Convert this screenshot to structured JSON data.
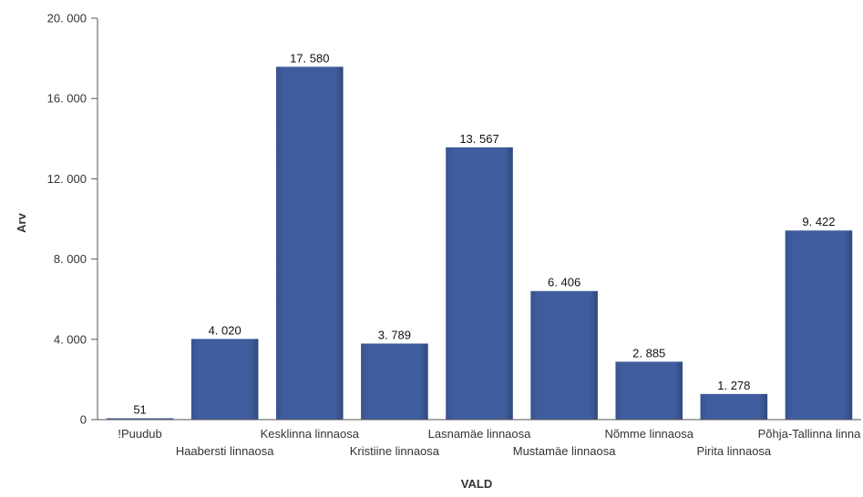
{
  "chart_data": {
    "type": "bar",
    "title": "",
    "xlabel": "VALD",
    "ylabel": "Arv",
    "ylim": [
      0,
      20000
    ],
    "yticks": [
      0,
      4000,
      8000,
      12000,
      16000,
      20000
    ],
    "ytick_labels": [
      "0",
      "4. 000",
      "8. 000",
      "12. 000",
      "16. 000",
      "20. 000"
    ],
    "grid": false,
    "legend": "none",
    "bar_color": "#3f5d9e",
    "categories": [
      "!Puudub",
      "Haabersti linnaosa",
      "Kesklinna linnaosa",
      "Kristiine linnaosa",
      "Lasnamäe linnaosa",
      "Mustamäe linnaosa",
      "Nõmme linnaosa",
      "Pirita linnaosa",
      "Põhja-Tallinna linnaosa"
    ],
    "values": [
      51,
      4020,
      17580,
      3789,
      13567,
      6406,
      2885,
      1278,
      9422
    ],
    "data_labels": [
      "51",
      "4. 020",
      "17. 580",
      "3. 789",
      "13. 567",
      "6. 406",
      "2. 885",
      "1. 278",
      "9. 422"
    ]
  }
}
